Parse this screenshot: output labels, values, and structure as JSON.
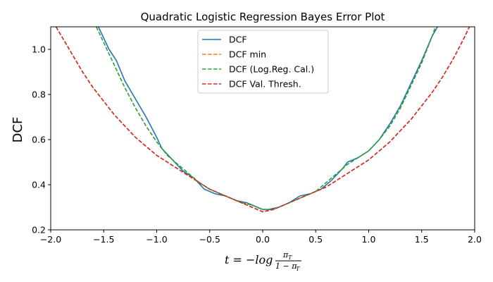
{
  "chart_data": {
    "type": "line",
    "title": "Quadratic Logistic Regression Bayes Error Plot",
    "ylabel": "DCF",
    "xlabel": {
      "lhs": "t = −log",
      "num": "π",
      "num_sub": "T",
      "den": "1 − π",
      "den_sub": "T"
    },
    "xlim": [
      -2.0,
      2.0
    ],
    "ylim": [
      0.2,
      1.1
    ],
    "xticks": [
      "−2.0",
      "−1.5",
      "−1.0",
      "−0.5",
      "0.0",
      "0.5",
      "1.0",
      "1.5",
      "2.0"
    ],
    "xtick_values": [
      -2.0,
      -1.5,
      -1.0,
      -0.5,
      0.0,
      0.5,
      1.0,
      1.5,
      2.0
    ],
    "yticks": [
      "0.2",
      "0.4",
      "0.6",
      "0.8",
      "1.0"
    ],
    "ytick_values": [
      0.2,
      0.4,
      0.6,
      0.8,
      1.0
    ],
    "grid": false,
    "legend_position": "upper-center",
    "series": [
      {
        "name": "DCF",
        "color": "#1f77b4",
        "style": "solid",
        "x": [
          -1.55,
          -1.45,
          -1.38,
          -1.3,
          -1.2,
          -1.1,
          -1.0,
          -0.95,
          -0.85,
          -0.75,
          -0.65,
          -0.55,
          -0.45,
          -0.35,
          -0.25,
          -0.15,
          -0.05,
          0.0,
          0.05,
          0.15,
          0.25,
          0.35,
          0.45,
          0.55,
          0.65,
          0.75,
          0.8,
          0.9,
          1.0,
          1.1,
          1.2,
          1.3,
          1.4,
          1.5,
          1.6,
          1.65
        ],
        "y": [
          1.1,
          1.0,
          0.95,
          0.86,
          0.78,
          0.7,
          0.61,
          0.56,
          0.51,
          0.46,
          0.43,
          0.38,
          0.36,
          0.35,
          0.33,
          0.32,
          0.3,
          0.29,
          0.29,
          0.3,
          0.32,
          0.35,
          0.36,
          0.38,
          0.42,
          0.47,
          0.5,
          0.52,
          0.55,
          0.6,
          0.67,
          0.75,
          0.85,
          0.95,
          1.06,
          1.1
        ]
      },
      {
        "name": "DCF min",
        "color": "#ff7f0e",
        "style": "dashed",
        "x": [
          -1.95,
          -1.9,
          -1.8,
          -1.7,
          -1.6,
          -1.5,
          -1.4,
          -1.3,
          -1.2,
          -1.1,
          -1.0,
          -0.9,
          -0.8,
          -0.7,
          -0.6,
          -0.5,
          -0.4,
          -0.3,
          -0.2,
          -0.1,
          0.0,
          0.1,
          0.2,
          0.3,
          0.4,
          0.5,
          0.6,
          0.7,
          0.8,
          0.9,
          1.0,
          1.1,
          1.2,
          1.3,
          1.4,
          1.5,
          1.6,
          1.7,
          1.8,
          1.9,
          1.95
        ],
        "y": [
          1.1,
          1.06,
          0.98,
          0.9,
          0.83,
          0.77,
          0.71,
          0.66,
          0.61,
          0.57,
          0.53,
          0.5,
          0.47,
          0.44,
          0.41,
          0.38,
          0.36,
          0.34,
          0.32,
          0.3,
          0.28,
          0.29,
          0.31,
          0.33,
          0.35,
          0.37,
          0.39,
          0.42,
          0.45,
          0.48,
          0.51,
          0.55,
          0.59,
          0.64,
          0.69,
          0.75,
          0.81,
          0.88,
          0.96,
          1.05,
          1.1
        ]
      },
      {
        "name": "DCF (Log.Reg. Cal.)",
        "color": "#2ca02c",
        "style": "dashed",
        "x": [
          -1.57,
          -1.5,
          -1.4,
          -1.3,
          -1.2,
          -1.1,
          -1.0,
          -0.9,
          -0.8,
          -0.7,
          -0.6,
          -0.5,
          -0.4,
          -0.3,
          -0.2,
          -0.1,
          0.0,
          0.1,
          0.2,
          0.3,
          0.4,
          0.5,
          0.6,
          0.7,
          0.8,
          0.9,
          1.0,
          1.1,
          1.2,
          1.3,
          1.4,
          1.5,
          1.6,
          1.63
        ],
        "y": [
          1.1,
          1.03,
          0.93,
          0.83,
          0.74,
          0.66,
          0.59,
          0.53,
          0.49,
          0.45,
          0.41,
          0.38,
          0.36,
          0.34,
          0.32,
          0.31,
          0.29,
          0.29,
          0.31,
          0.33,
          0.35,
          0.37,
          0.41,
          0.45,
          0.49,
          0.52,
          0.55,
          0.6,
          0.66,
          0.74,
          0.84,
          0.94,
          1.06,
          1.1
        ]
      },
      {
        "name": "DCF Val. Thresh.",
        "color": "#d62728",
        "style": "dashed",
        "x": [
          -1.95,
          -1.9,
          -1.8,
          -1.7,
          -1.6,
          -1.5,
          -1.4,
          -1.3,
          -1.2,
          -1.1,
          -1.0,
          -0.9,
          -0.8,
          -0.7,
          -0.6,
          -0.5,
          -0.4,
          -0.3,
          -0.2,
          -0.1,
          0.0,
          0.1,
          0.2,
          0.3,
          0.4,
          0.5,
          0.6,
          0.7,
          0.8,
          0.9,
          1.0,
          1.1,
          1.2,
          1.3,
          1.4,
          1.5,
          1.6,
          1.7,
          1.8,
          1.9,
          1.95
        ],
        "y": [
          1.1,
          1.06,
          0.98,
          0.9,
          0.83,
          0.77,
          0.71,
          0.66,
          0.61,
          0.57,
          0.53,
          0.5,
          0.47,
          0.44,
          0.41,
          0.38,
          0.36,
          0.34,
          0.32,
          0.3,
          0.28,
          0.29,
          0.31,
          0.33,
          0.35,
          0.37,
          0.39,
          0.42,
          0.45,
          0.48,
          0.51,
          0.55,
          0.59,
          0.64,
          0.69,
          0.75,
          0.81,
          0.88,
          0.96,
          1.05,
          1.1
        ]
      }
    ]
  }
}
